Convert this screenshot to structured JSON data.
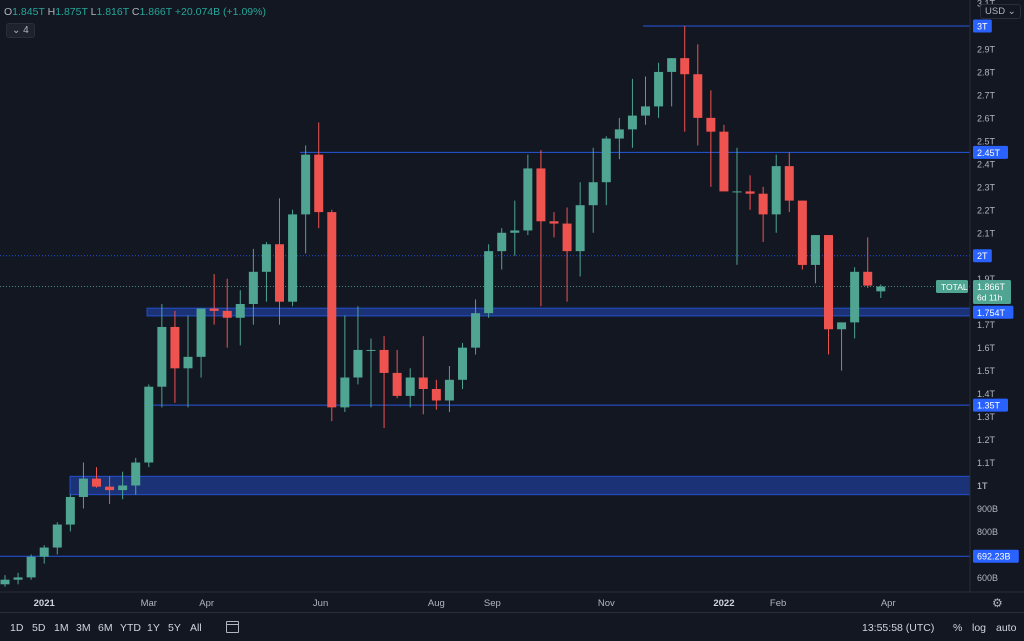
{
  "legend": {
    "open_label": "O",
    "open": "1.845T",
    "high_label": "H",
    "high": "1.875T",
    "low_label": "L",
    "low": "1.816T",
    "close_label": "C",
    "close": "1.866T",
    "change": "+20.074B (+1.09%)",
    "indicator_count": "4"
  },
  "currency": "USD",
  "timeframes": [
    "1D",
    "5D",
    "1M",
    "3M",
    "6M",
    "YTD",
    "1Y",
    "5Y",
    "All"
  ],
  "clock": "13:55:58 (UTC)",
  "scale_options": {
    "percent": "%",
    "log": "log",
    "auto": "auto"
  },
  "chart_data": {
    "type": "candlestick",
    "y_scale": "linear",
    "ylim": [
      580,
      3100
    ],
    "y_unit": "billion USD",
    "y_ticks": [
      {
        "v": 3100,
        "label": "3.1T"
      },
      {
        "v": 2900,
        "label": "2.9T"
      },
      {
        "v": 2800,
        "label": "2.8T"
      },
      {
        "v": 2700,
        "label": "2.7T"
      },
      {
        "v": 2600,
        "label": "2.6T"
      },
      {
        "v": 2500,
        "label": "2.5T"
      },
      {
        "v": 2400,
        "label": "2.4T"
      },
      {
        "v": 2300,
        "label": "2.3T"
      },
      {
        "v": 2200,
        "label": "2.2T"
      },
      {
        "v": 2100,
        "label": "2.1T"
      },
      {
        "v": 1900,
        "label": "1.9T"
      },
      {
        "v": 1700,
        "label": "1.7T"
      },
      {
        "v": 1600,
        "label": "1.6T"
      },
      {
        "v": 1500,
        "label": "1.5T"
      },
      {
        "v": 1400,
        "label": "1.4T"
      },
      {
        "v": 1300,
        "label": "1.3T"
      },
      {
        "v": 1200,
        "label": "1.2T"
      },
      {
        "v": 1100,
        "label": "1.1T"
      },
      {
        "v": 1000,
        "label": "1T"
      },
      {
        "v": 900,
        "label": "900B"
      },
      {
        "v": 800,
        "label": "800B"
      },
      {
        "v": 600,
        "label": "600B"
      }
    ],
    "x_start": "2020-12-14",
    "x_end": "2022-04-18",
    "x_labels": [
      {
        "date": "2021-01-04",
        "label": "2021",
        "bold": true
      },
      {
        "date": "2021-03-01",
        "label": "Mar"
      },
      {
        "date": "2021-04-01",
        "label": "Apr"
      },
      {
        "date": "2021-06-01",
        "label": "Jun"
      },
      {
        "date": "2021-08-02",
        "label": "Aug"
      },
      {
        "date": "2021-09-01",
        "label": "Sep"
      },
      {
        "date": "2021-11-01",
        "label": "Nov"
      },
      {
        "date": "2022-01-03",
        "label": "2022",
        "bold": true
      },
      {
        "date": "2022-02-01",
        "label": "Feb"
      },
      {
        "date": "2022-04-01",
        "label": "Apr"
      }
    ],
    "candles": [
      {
        "d": "2020-12-14",
        "o": 570,
        "h": 610,
        "l": 560,
        "c": 590
      },
      {
        "d": "2020-12-21",
        "o": 590,
        "h": 620,
        "l": 570,
        "c": 600
      },
      {
        "d": "2020-12-28",
        "o": 600,
        "h": 700,
        "l": 590,
        "c": 690
      },
      {
        "d": "2021-01-04",
        "o": 690,
        "h": 740,
        "l": 660,
        "c": 730
      },
      {
        "d": "2021-01-11",
        "o": 730,
        "h": 840,
        "l": 700,
        "c": 830
      },
      {
        "d": "2021-01-18",
        "o": 830,
        "h": 960,
        "l": 800,
        "c": 950
      },
      {
        "d": "2021-01-25",
        "o": 950,
        "h": 1100,
        "l": 900,
        "c": 1030
      },
      {
        "d": "2021-02-01",
        "o": 1030,
        "h": 1080,
        "l": 990,
        "c": 995
      },
      {
        "d": "2021-02-08",
        "o": 995,
        "h": 1040,
        "l": 920,
        "c": 980
      },
      {
        "d": "2021-02-15",
        "o": 980,
        "h": 1060,
        "l": 940,
        "c": 1000
      },
      {
        "d": "2021-02-22",
        "o": 1000,
        "h": 1120,
        "l": 960,
        "c": 1100
      },
      {
        "d": "2021-03-01",
        "o": 1100,
        "h": 1440,
        "l": 1080,
        "c": 1430
      },
      {
        "d": "2021-03-08",
        "o": 1430,
        "h": 1790,
        "l": 1340,
        "c": 1690
      },
      {
        "d": "2021-03-15",
        "o": 1690,
        "h": 1760,
        "l": 1360,
        "c": 1510
      },
      {
        "d": "2021-03-22",
        "o": 1510,
        "h": 1740,
        "l": 1340,
        "c": 1560
      },
      {
        "d": "2021-03-29",
        "o": 1560,
        "h": 1770,
        "l": 1470,
        "c": 1770
      },
      {
        "d": "2021-04-05",
        "o": 1770,
        "h": 1920,
        "l": 1700,
        "c": 1760
      },
      {
        "d": "2021-04-12",
        "o": 1760,
        "h": 1900,
        "l": 1600,
        "c": 1730
      },
      {
        "d": "2021-04-19",
        "o": 1730,
        "h": 1850,
        "l": 1610,
        "c": 1790
      },
      {
        "d": "2021-04-26",
        "o": 1790,
        "h": 2030,
        "l": 1700,
        "c": 1930
      },
      {
        "d": "2021-05-03",
        "o": 1930,
        "h": 2060,
        "l": 1800,
        "c": 2050
      },
      {
        "d": "2021-05-10",
        "o": 2050,
        "h": 2250,
        "l": 1700,
        "c": 1800
      },
      {
        "d": "2021-05-17",
        "o": 1800,
        "h": 2200,
        "l": 1780,
        "c": 2180
      },
      {
        "d": "2021-05-24",
        "o": 2180,
        "h": 2480,
        "l": 2010,
        "c": 2440
      },
      {
        "d": "2021-05-31",
        "o": 2440,
        "h": 2580,
        "l": 2120,
        "c": 2190
      },
      {
        "d": "2021-06-07",
        "o": 2190,
        "h": 2200,
        "l": 1280,
        "c": 1340
      },
      {
        "d": "2021-06-14",
        "o": 1340,
        "h": 1740,
        "l": 1320,
        "c": 1470
      },
      {
        "d": "2021-06-21",
        "o": 1470,
        "h": 1780,
        "l": 1440,
        "c": 1590
      },
      {
        "d": "2021-06-28",
        "o": 1590,
        "h": 1640,
        "l": 1340,
        "c": 1590
      },
      {
        "d": "2021-07-05",
        "o": 1590,
        "h": 1650,
        "l": 1250,
        "c": 1490
      },
      {
        "d": "2021-07-12",
        "o": 1490,
        "h": 1590,
        "l": 1380,
        "c": 1390
      },
      {
        "d": "2021-07-19",
        "o": 1390,
        "h": 1510,
        "l": 1340,
        "c": 1470
      },
      {
        "d": "2021-07-26",
        "o": 1470,
        "h": 1650,
        "l": 1310,
        "c": 1420
      },
      {
        "d": "2021-08-02",
        "o": 1420,
        "h": 1460,
        "l": 1330,
        "c": 1370
      },
      {
        "d": "2021-08-09",
        "o": 1370,
        "h": 1520,
        "l": 1320,
        "c": 1460
      },
      {
        "d": "2021-08-16",
        "o": 1460,
        "h": 1620,
        "l": 1420,
        "c": 1600
      },
      {
        "d": "2021-08-23",
        "o": 1600,
        "h": 1810,
        "l": 1570,
        "c": 1750
      },
      {
        "d": "2021-08-30",
        "o": 1750,
        "h": 2050,
        "l": 1730,
        "c": 2020
      },
      {
        "d": "2021-09-06",
        "o": 2020,
        "h": 2120,
        "l": 1940,
        "c": 2100
      },
      {
        "d": "2021-09-13",
        "o": 2100,
        "h": 2240,
        "l": 2000,
        "c": 2110
      },
      {
        "d": "2021-09-20",
        "o": 2110,
        "h": 2440,
        "l": 2090,
        "c": 2380
      },
      {
        "d": "2021-09-27",
        "o": 2380,
        "h": 2460,
        "l": 1780,
        "c": 2150
      },
      {
        "d": "2021-10-04",
        "o": 2150,
        "h": 2190,
        "l": 2080,
        "c": 2140
      },
      {
        "d": "2021-10-11",
        "o": 2140,
        "h": 2210,
        "l": 1800,
        "c": 2020
      },
      {
        "d": "2021-10-18",
        "o": 2020,
        "h": 2320,
        "l": 1910,
        "c": 2220
      },
      {
        "d": "2021-10-25",
        "o": 2220,
        "h": 2470,
        "l": 2100,
        "c": 2320
      },
      {
        "d": "2021-11-01",
        "o": 2320,
        "h": 2520,
        "l": 2220,
        "c": 2510
      },
      {
        "d": "2021-11-08",
        "o": 2510,
        "h": 2600,
        "l": 2420,
        "c": 2550
      },
      {
        "d": "2021-11-15",
        "o": 2550,
        "h": 2770,
        "l": 2470,
        "c": 2610
      },
      {
        "d": "2021-11-22",
        "o": 2610,
        "h": 2780,
        "l": 2570,
        "c": 2650
      },
      {
        "d": "2021-11-29",
        "o": 2650,
        "h": 2840,
        "l": 2600,
        "c": 2800
      },
      {
        "d": "2021-12-06",
        "o": 2800,
        "h": 2860,
        "l": 2650,
        "c": 2860
      },
      {
        "d": "2021-12-13",
        "o": 2860,
        "h": 3000,
        "l": 2540,
        "c": 2790
      },
      {
        "d": "2021-12-20",
        "o": 2790,
        "h": 2920,
        "l": 2480,
        "c": 2600
      },
      {
        "d": "2021-12-27",
        "o": 2600,
        "h": 2720,
        "l": 2300,
        "c": 2540
      },
      {
        "d": "2022-01-03",
        "o": 2540,
        "h": 2570,
        "l": 2280,
        "c": 2280
      },
      {
        "d": "2022-01-10",
        "o": 2280,
        "h": 2470,
        "l": 1960,
        "c": 2280
      },
      {
        "d": "2022-01-17",
        "o": 2280,
        "h": 2350,
        "l": 2200,
        "c": 2270
      },
      {
        "d": "2022-01-24",
        "o": 2270,
        "h": 2300,
        "l": 2060,
        "c": 2180
      },
      {
        "d": "2022-01-31",
        "o": 2180,
        "h": 2440,
        "l": 2100,
        "c": 2390
      },
      {
        "d": "2022-02-07",
        "o": 2390,
        "h": 2450,
        "l": 2190,
        "c": 2240
      },
      {
        "d": "2022-02-14",
        "o": 2240,
        "h": 2240,
        "l": 1940,
        "c": 1960
      },
      {
        "d": "2022-02-21",
        "o": 1960,
        "h": 2090,
        "l": 1880,
        "c": 2090
      },
      {
        "d": "2022-02-28",
        "o": 2090,
        "h": 2090,
        "l": 1570,
        "c": 1680
      },
      {
        "d": "2022-03-07",
        "o": 1680,
        "h": 1700,
        "l": 1500,
        "c": 1710
      },
      {
        "d": "2022-03-14",
        "o": 1710,
        "h": 1950,
        "l": 1640,
        "c": 1930
      },
      {
        "d": "2022-03-21",
        "o": 1930,
        "h": 2080,
        "l": 1860,
        "c": 1870
      },
      {
        "d": "2022-03-28",
        "o": 1845,
        "h": 1875,
        "l": 1816,
        "c": 1866
      }
    ],
    "levels": [
      {
        "value": 3000,
        "label": "3T",
        "kind": "line"
      },
      {
        "value": 2450,
        "label": "2.45T",
        "kind": "line"
      },
      {
        "value": 2000,
        "label": "2T",
        "kind": "dotted"
      },
      {
        "value": 1754,
        "label": "1.754T",
        "kind": "zone",
        "low": 1738,
        "high": 1772
      },
      {
        "value": 1350,
        "label": "1.35T",
        "kind": "line"
      },
      {
        "value": 1000,
        "label": "1T",
        "kind": "zone",
        "low": 960,
        "high": 1040
      },
      {
        "value": 692.23,
        "label": "692.23B",
        "kind": "line"
      }
    ],
    "last_price": {
      "value": 1866,
      "symbol": "TOTAL",
      "price_label": "1.866T",
      "countdown": "6d 11h"
    },
    "colors": {
      "up": "#4fa492",
      "down": "#ef5350",
      "level": "#2962ff",
      "bg": "#131722",
      "text": "#b2b5be"
    },
    "grid": false
  }
}
